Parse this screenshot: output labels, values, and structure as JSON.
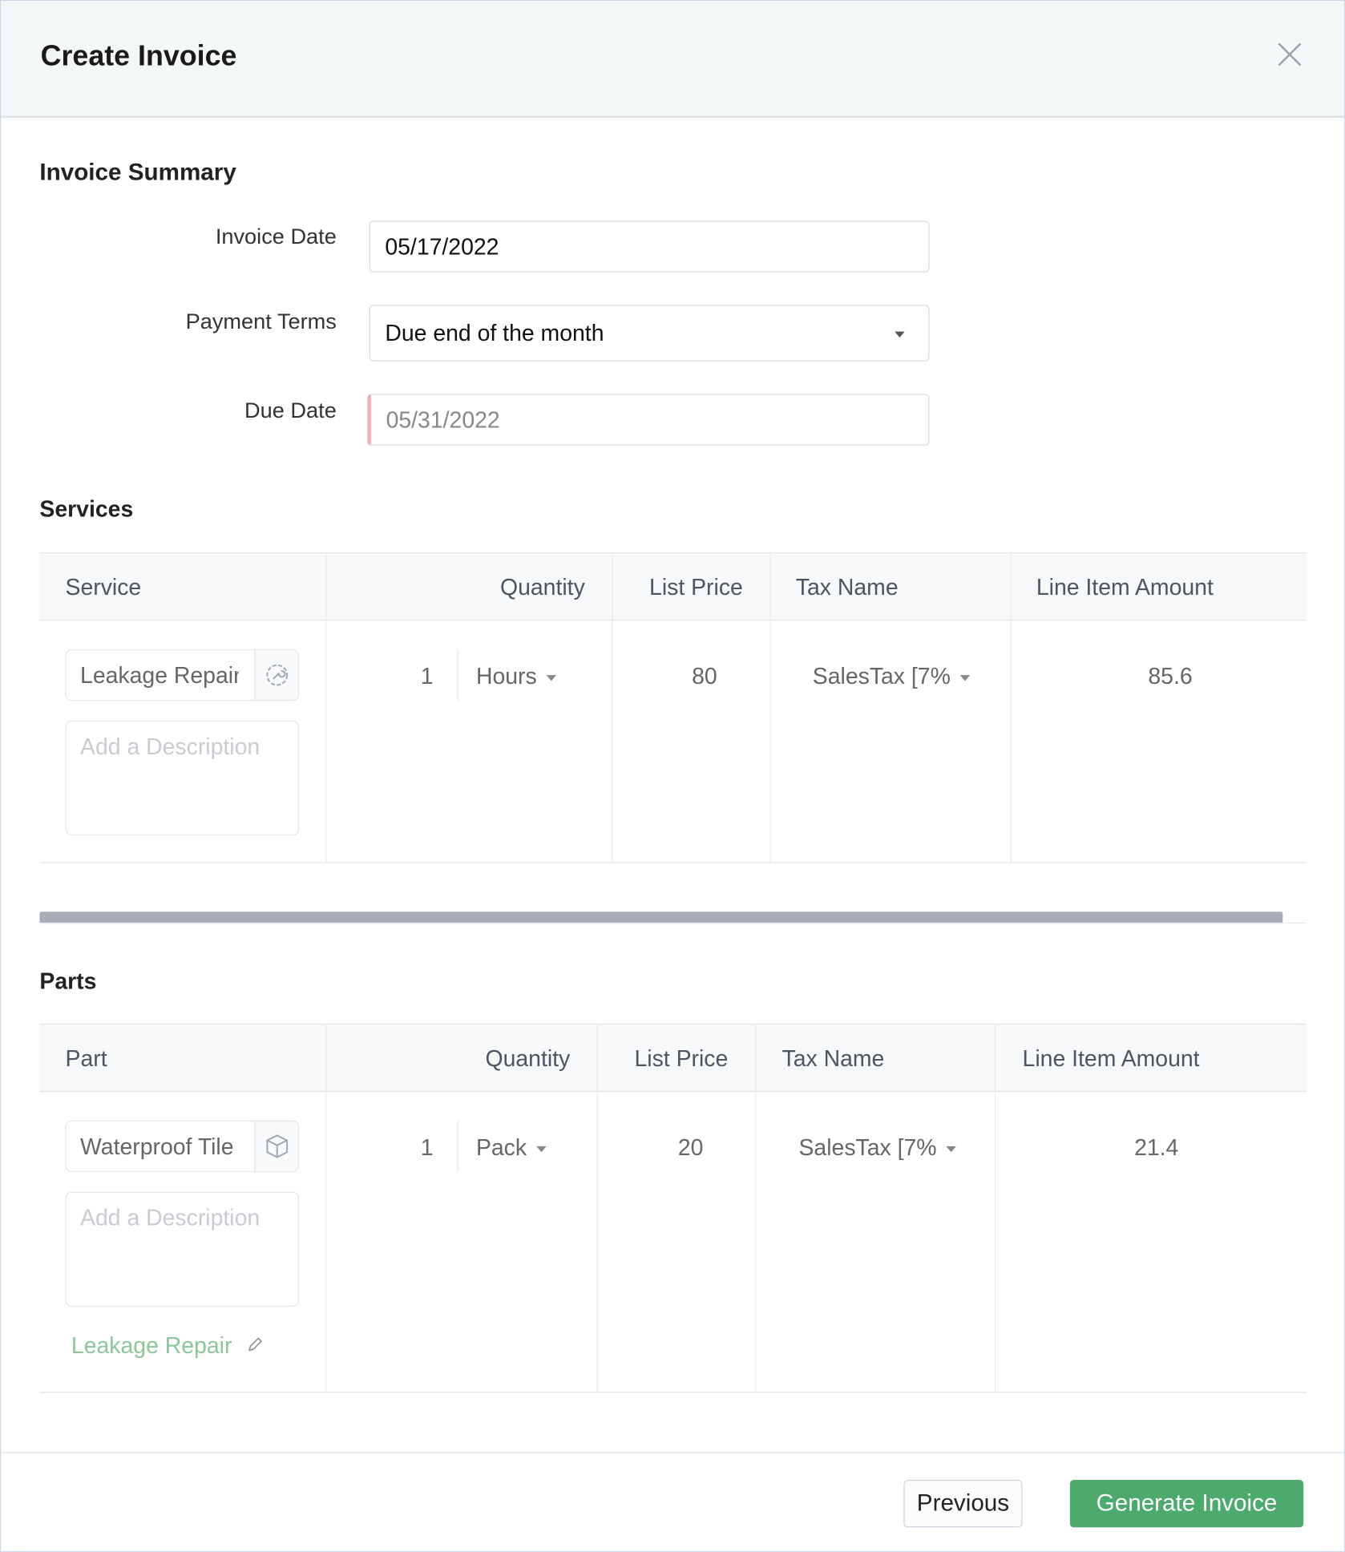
{
  "dialog": {
    "title": "Create Invoice",
    "close_icon": "close-icon"
  },
  "summary": {
    "heading": "Invoice Summary",
    "invoice_date_label": "Invoice Date",
    "invoice_date": "05/17/2022",
    "payment_terms_label": "Payment Terms",
    "payment_terms": "Due end of the month",
    "due_date_label": "Due Date",
    "due_date": "05/31/2022"
  },
  "services": {
    "heading": "Services",
    "columns": [
      "Service",
      "Quantity",
      "List Price",
      "Tax Name",
      "Line Item Amount"
    ],
    "rows": [
      {
        "name": "Leakage Repair",
        "icon": "wrench-gear-icon",
        "description_placeholder": "Add a Description",
        "quantity": "1",
        "unit": "Hours",
        "list_price": "80",
        "tax": "SalesTax [7%",
        "amount": "85.6"
      }
    ]
  },
  "parts": {
    "heading": "Parts",
    "columns": [
      "Part",
      "Quantity",
      "List Price",
      "Tax Name",
      "Line Item Amount"
    ],
    "rows": [
      {
        "name": "Waterproof Tile",
        "icon": "box-icon",
        "description_placeholder": "Add a Description",
        "quantity": "1",
        "unit": "Pack",
        "list_price": "20",
        "tax": "SalesTax [7%",
        "amount": "21.4",
        "linked_service": "Leakage Repair"
      }
    ]
  },
  "footer": {
    "previous_label": "Previous",
    "generate_label": "Generate Invoice"
  },
  "colors": {
    "accent": "#4caa6c",
    "link": "#8cc69a",
    "due_date_marker": "#f0b4b4"
  }
}
